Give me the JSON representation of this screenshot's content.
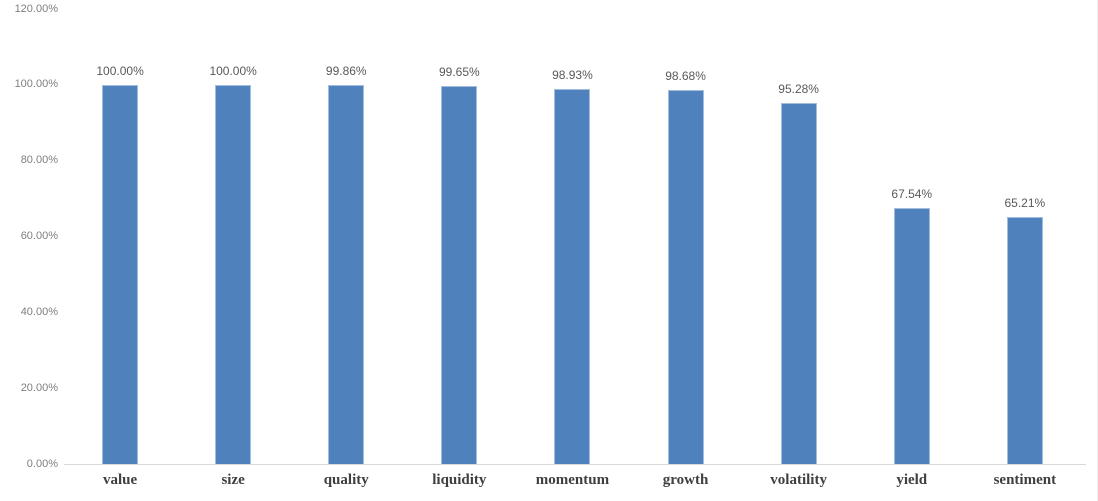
{
  "chart_data": {
    "type": "bar",
    "title": "",
    "xlabel": "",
    "ylabel": "",
    "categories": [
      "value",
      "size",
      "quality",
      "liquidity",
      "momentum",
      "growth",
      "volatility",
      "yield",
      "sentiment"
    ],
    "values": [
      100.0,
      100.0,
      99.86,
      99.65,
      98.93,
      98.68,
      95.28,
      67.54,
      65.21
    ],
    "data_labels": [
      "100.00%",
      "100.00%",
      "99.86%",
      "99.65%",
      "98.93%",
      "98.68%",
      "95.28%",
      "67.54%",
      "65.21%"
    ],
    "ylim": [
      0,
      120
    ],
    "y_tick_values": [
      0,
      20,
      40,
      60,
      80,
      100,
      120
    ],
    "y_tick_labels": [
      "0.00%",
      "20.00%",
      "40.00%",
      "60.00%",
      "80.00%",
      "100.00%",
      "120.00%"
    ],
    "grid": false,
    "legend": false,
    "colors": {
      "bar_fill": "#4f81bd",
      "bar_border": "#a3bedd",
      "axis_line": "#d9d9d9",
      "y_tick_label": "#7f7f7f",
      "data_label": "#595959",
      "category_label": "#3f3f3f",
      "background": "#ffffff"
    }
  }
}
